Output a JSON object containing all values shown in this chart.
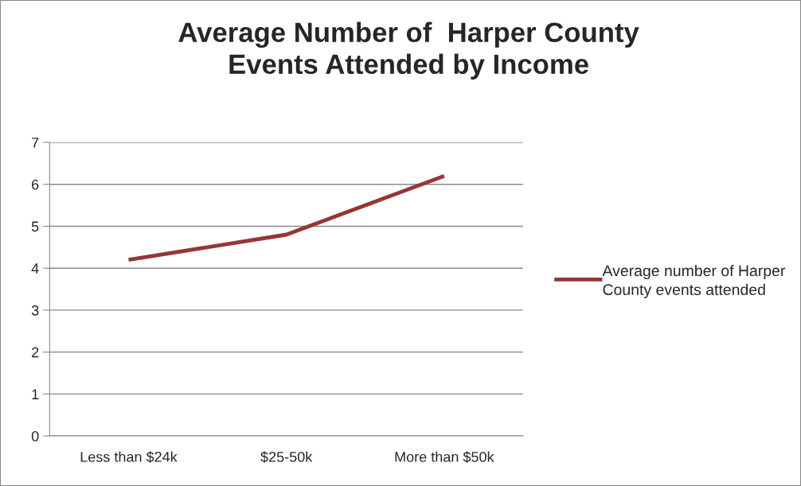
{
  "chart_data": {
    "type": "line",
    "title": "Average Number of  Harper County\nEvents Attended by Income",
    "categories": [
      "Less than $24k",
      "$25-50k",
      "More than $50k"
    ],
    "series": [
      {
        "name": "Average number of Harper County events attended",
        "color": "#953735",
        "values": [
          4.2,
          4.8,
          6.2
        ]
      }
    ],
    "ylim": [
      0,
      7
    ],
    "yticks": [
      0,
      1,
      2,
      3,
      4,
      5,
      6,
      7
    ],
    "grid": "y",
    "legend": "right",
    "marker": "none",
    "line_style": "solid"
  }
}
